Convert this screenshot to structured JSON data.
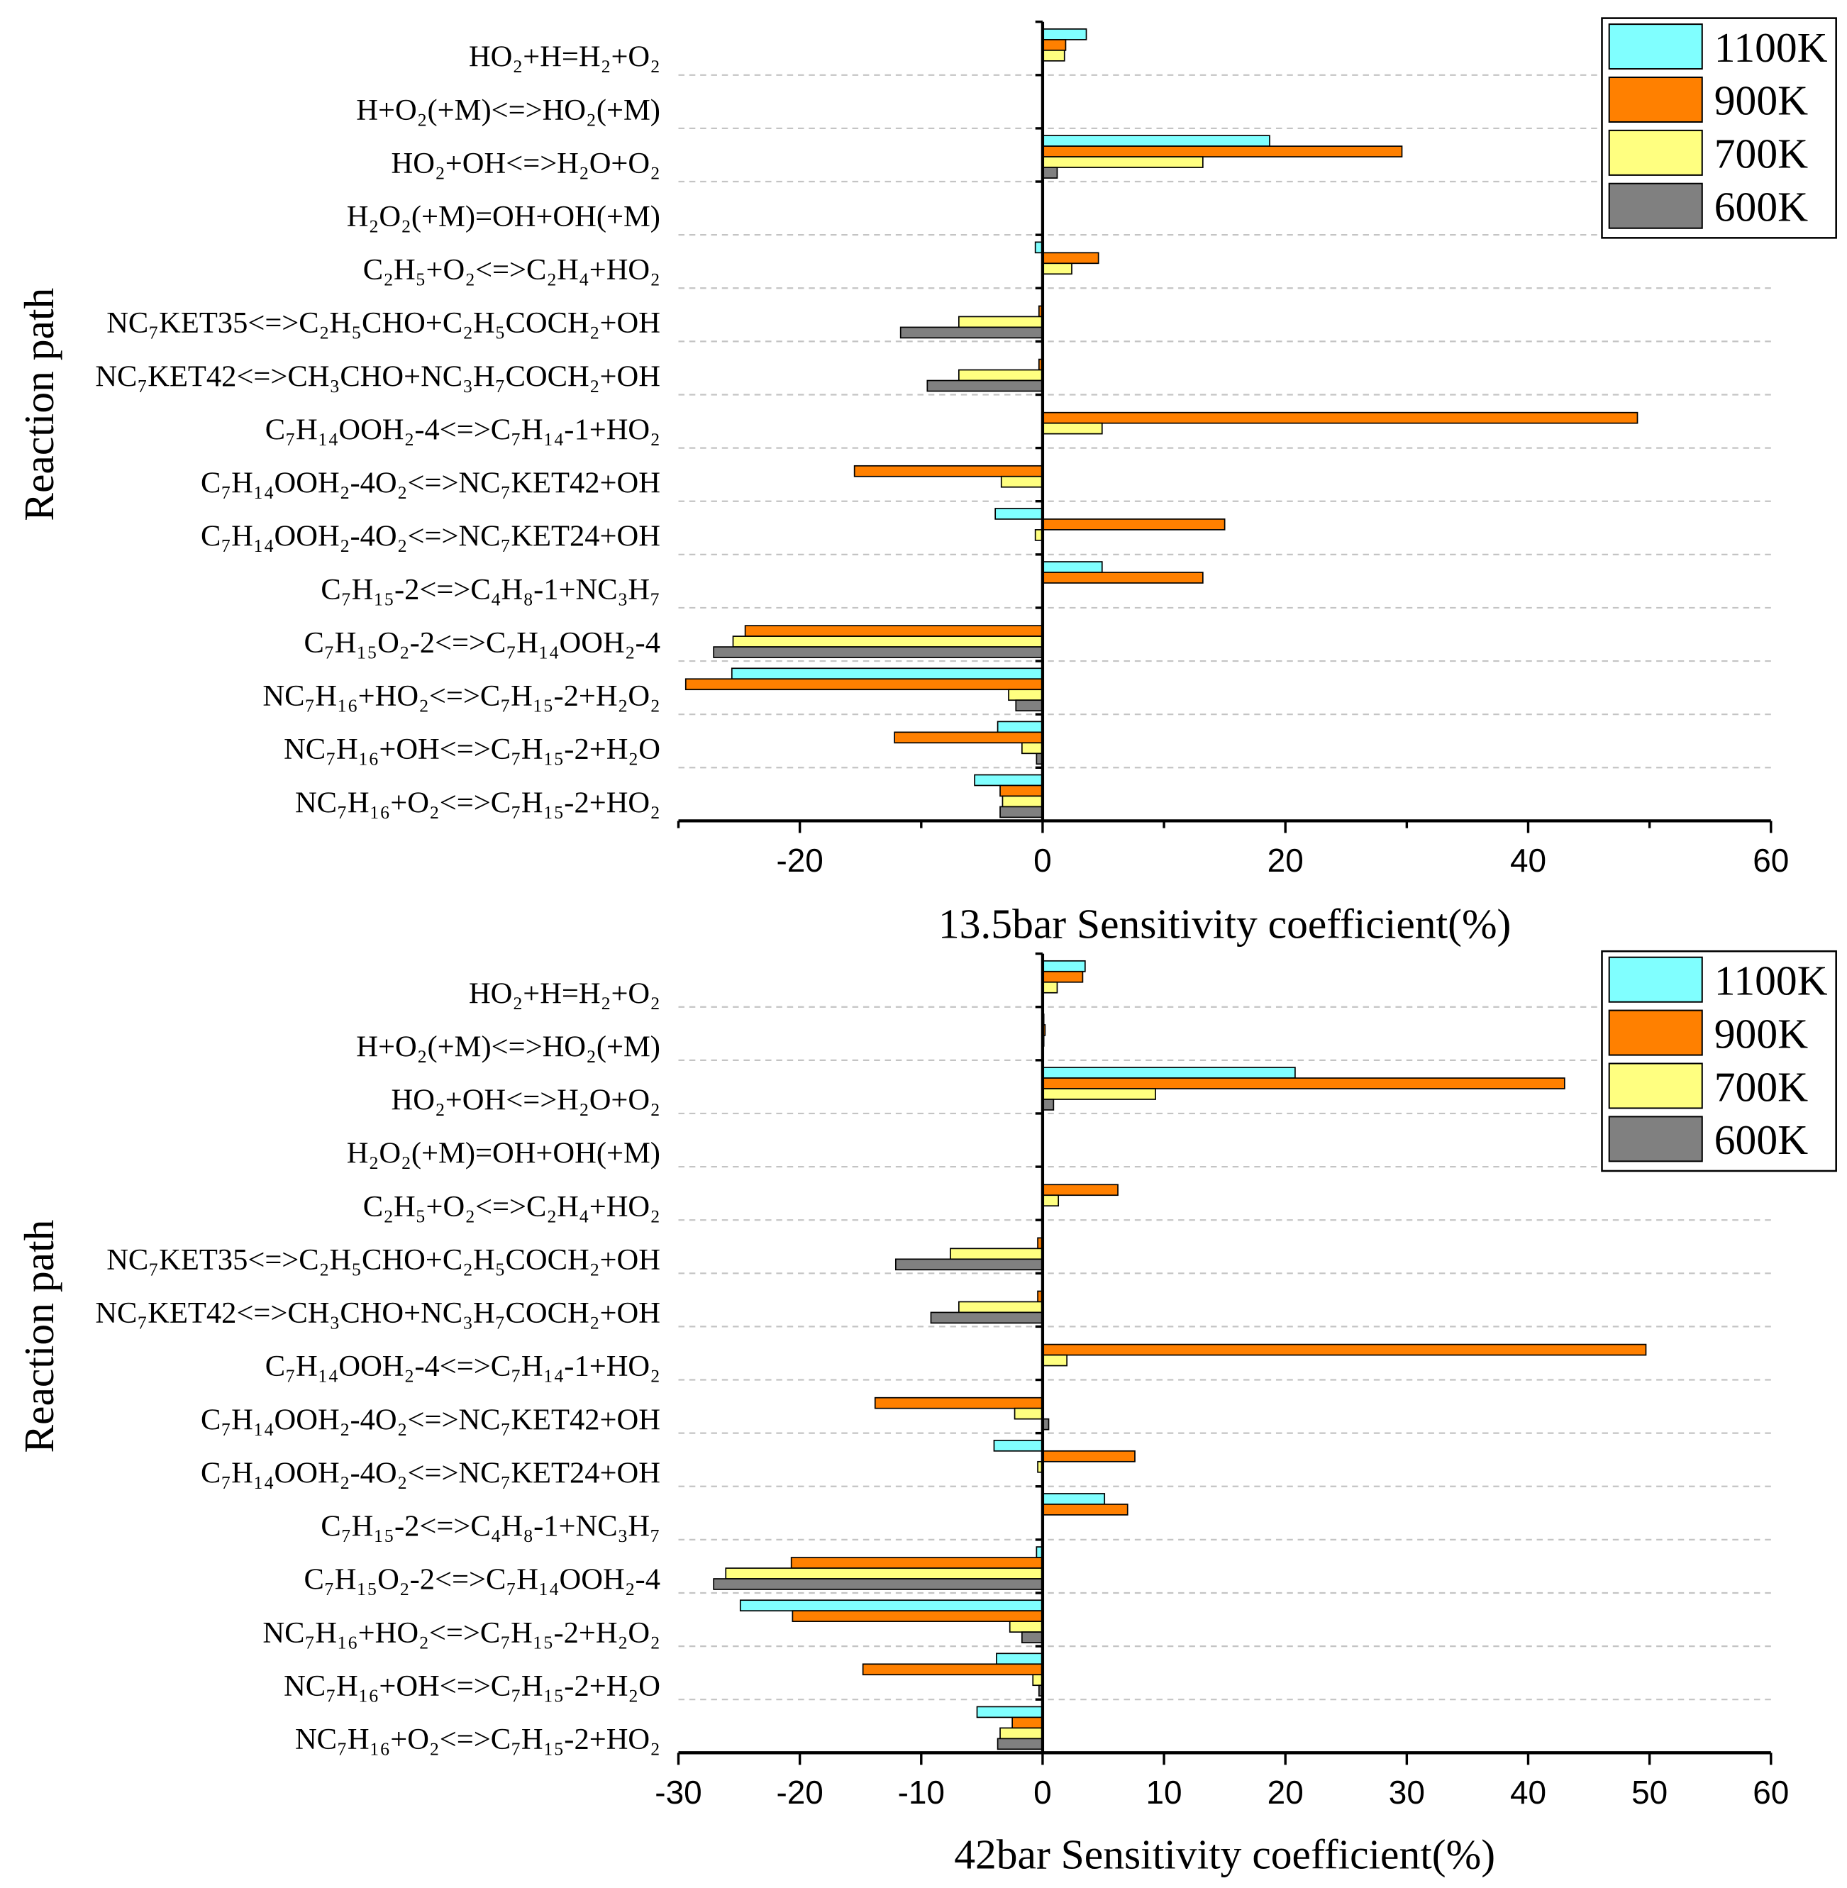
{
  "chart_data": [
    {
      "type": "bar",
      "xlabel": "13.5bar Sensitivity coefficient(%)",
      "ylabel": "Reaction path",
      "xlim": [
        -30,
        60
      ],
      "xticks": [
        -20,
        0,
        20,
        40,
        60
      ],
      "xtick_labels": [
        "-20",
        "0",
        "20",
        "40",
        "60"
      ],
      "categories": [
        "HO₂+H=H₂+O₂",
        "H+O₂(+M)<=>HO₂(+M)",
        "HO₂+OH<=>H₂O+O₂",
        "H₂O₂(+M)=OH+OH(+M)",
        "C₂H₅+O₂<=>C₂H₄+HO₂",
        "NC₇KET35<=>C₂H₅CHO+C₂H₅COCH₂+OH",
        "NC₇KET42<=>CH₃CHO+NC₃H₇COCH₂+OH",
        "C₇H₁₄OOH₂-4<=>C₇H₁₄-1+HO₂",
        "C₇H₁₄OOH₂-4O₂<=>NC₇KET42+OH",
        "C₇H₁₄OOH₂-4O₂<=>NC₇KET24+OH",
        "C₇H₁₅-2<=>C₄H₈-1+NC₃H₇",
        "C₇H₁₅O₂-2<=>C₇H₁₄OOH₂-4",
        "NC₇H₁₆+HO₂<=>C₇H₁₅-2+H₂O₂",
        "NC₇H₁₆+OH<=>C₇H₁₅-2+H₂O",
        "NC₇H₁₆+O₂<=>C₇H₁₅-2+HO₂"
      ],
      "series": [
        {
          "name": "1100K",
          "color": "#80FFFF",
          "values": [
            3.6,
            0,
            18.7,
            0,
            -0.6,
            0,
            0,
            0,
            0,
            -3.9,
            4.9,
            0,
            -25.6,
            -3.7,
            -5.6
          ]
        },
        {
          "name": "900K",
          "color": "#FF8000",
          "values": [
            1.9,
            0,
            29.6,
            0,
            4.6,
            -0.3,
            -0.3,
            49.0,
            -15.5,
            15.0,
            13.2,
            -24.5,
            -29.4,
            -12.2,
            -3.5
          ]
        },
        {
          "name": "700K",
          "color": "#FFFF80",
          "values": [
            1.8,
            0,
            13.2,
            0,
            2.4,
            -6.9,
            -6.9,
            4.9,
            -3.4,
            -0.6,
            0,
            -25.5,
            -2.8,
            -1.7,
            -3.3
          ]
        },
        {
          "name": "600K",
          "color": "#808080",
          "values": [
            0,
            0,
            1.2,
            0,
            0,
            -11.7,
            -9.5,
            0,
            0,
            0,
            0,
            -27.1,
            -2.2,
            -0.5,
            -3.5
          ]
        }
      ]
    },
    {
      "type": "bar",
      "xlabel": "42bar Sensitivity coefficient(%)",
      "ylabel": "Reaction path",
      "xlim": [
        -30,
        60
      ],
      "xticks": [
        -30,
        -20,
        -10,
        0,
        10,
        20,
        30,
        40,
        50,
        60
      ],
      "xtick_labels": [
        "-30",
        "-20",
        "-10",
        "0",
        "10",
        "20",
        "30",
        "40",
        "50",
        "60"
      ],
      "categories": [
        "HO₂+H=H₂+O₂",
        "H+O₂(+M)<=>HO₂(+M)",
        "HO₂+OH<=>H₂O+O₂",
        "H₂O₂(+M)=OH+OH(+M)",
        "C₂H₅+O₂<=>C₂H₄+HO₂",
        "NC₇KET35<=>C₂H₅CHO+C₂H₅COCH₂+OH",
        "NC₇KET42<=>CH₃CHO+NC₃H₇COCH₂+OH",
        "C₇H₁₄OOH₂-4<=>C₇H₁₄-1+HO₂",
        "C₇H₁₄OOH₂-4O₂<=>NC₇KET42+OH",
        "C₇H₁₄OOH₂-4O₂<=>NC₇KET24+OH",
        "C₇H₁₅-2<=>C₄H₈-1+NC₃H₇",
        "C₇H₁₅O₂-2<=>C₇H₁₄OOH₂-4",
        "NC₇H₁₆+HO₂<=>C₇H₁₅-2+H₂O₂",
        "NC₇H₁₆+OH<=>C₇H₁₅-2+H₂O",
        "NC₇H₁₆+O₂<=>C₇H₁₅-2+HO₂"
      ],
      "series": [
        {
          "name": "1100K",
          "color": "#80FFFF",
          "values": [
            3.5,
            0.1,
            20.8,
            0,
            0,
            0,
            0,
            0,
            0,
            -4.0,
            5.1,
            -0.5,
            -24.9,
            -3.8,
            -5.4
          ]
        },
        {
          "name": "900K",
          "color": "#FF8000",
          "values": [
            3.3,
            0.2,
            43.0,
            0,
            6.2,
            -0.4,
            -0.4,
            49.7,
            -13.8,
            7.6,
            7.0,
            -20.7,
            -20.6,
            -14.8,
            -2.5
          ]
        },
        {
          "name": "700K",
          "color": "#FFFF80",
          "values": [
            1.2,
            0.1,
            9.3,
            0,
            1.3,
            -7.6,
            -6.9,
            2.0,
            -2.3,
            -0.4,
            0,
            -26.1,
            -2.7,
            -0.8,
            -3.5
          ]
        },
        {
          "name": "600K",
          "color": "#808080",
          "values": [
            0,
            0,
            0.9,
            0,
            0,
            -12.1,
            -9.2,
            0,
            0.5,
            0,
            0,
            -27.1,
            -1.7,
            -0.3,
            -3.7
          ]
        }
      ]
    }
  ]
}
